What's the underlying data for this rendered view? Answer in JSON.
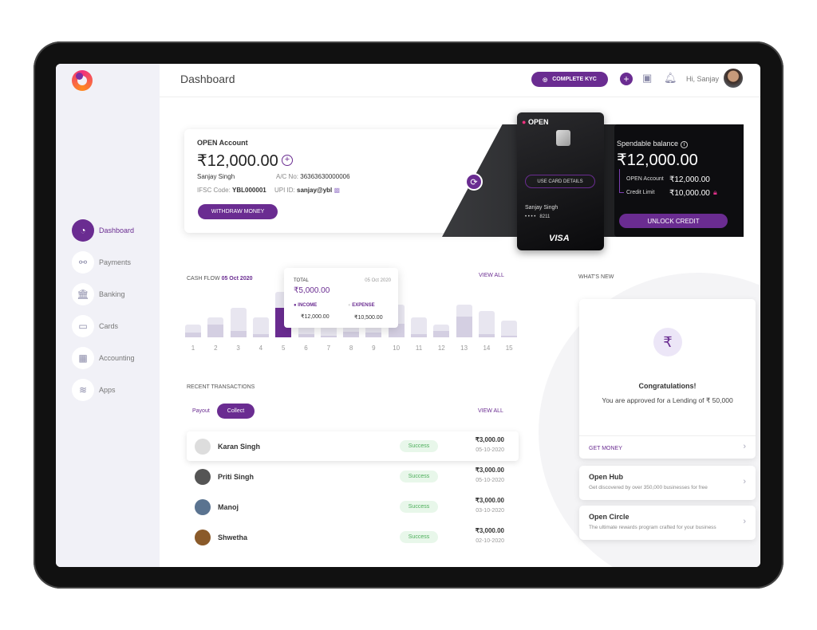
{
  "header": {
    "title": "Dashboard",
    "kyc_label": "COMPLETE KYC",
    "greeting": "Hi, Sanjay"
  },
  "sidebar": {
    "items": [
      {
        "label": "Dashboard",
        "icon": "speedometer-icon",
        "active": true
      },
      {
        "label": "Payments",
        "icon": "payments-icon"
      },
      {
        "label": "Banking",
        "icon": "bank-icon"
      },
      {
        "label": "Cards",
        "icon": "card-icon"
      },
      {
        "label": "Accounting",
        "icon": "calculator-icon"
      },
      {
        "label": "Apps",
        "icon": "layers-icon"
      }
    ]
  },
  "account": {
    "title": "OPEN Account",
    "balance": "₹12,000.00",
    "name": "Sanjay Singh",
    "ac_label": "A/C No:",
    "ac_no": "36363630000006",
    "ifsc_label": "IFSC Code:",
    "ifsc": "YBL000001",
    "upi_label": "UPI ID:",
    "upi": "sanjay@ybl",
    "withdraw": "WITHDRAW MONEY"
  },
  "vcard": {
    "brand": "OPEN",
    "use_details": "USE CARD DETAILS",
    "holder": "Sanjay Singh",
    "dots": "• • • •",
    "last4": "8211",
    "network": "VISA"
  },
  "spendable": {
    "title": "Spendable balance",
    "amount": "₹12,000.00",
    "open_label": "OPEN Account",
    "open_amount": "₹12,000.00",
    "credit_label": "Credit Limit",
    "credit_amount": "₹10,000.00",
    "unlock": "UNLOCK CREDIT"
  },
  "cashflow": {
    "title": "CASH FLOW",
    "date": "05 Oct 2020",
    "view_all": "VIEW ALL",
    "tooltip": {
      "total_label": "TOTAL",
      "date": "05 Oct 2020",
      "total": "₹5,000.00",
      "income_label": "INCOME",
      "income": "₹12,000.00",
      "expense_label": "EXPENSE",
      "expense": "₹10,500.00"
    }
  },
  "chart_data": {
    "type": "bar",
    "categories": [
      "1",
      "2",
      "3",
      "4",
      "5",
      "6",
      "7",
      "8",
      "9",
      "10",
      "11",
      "12",
      "13",
      "14",
      "15"
    ],
    "series": [
      {
        "values": [
          16,
          25,
          37,
          25,
          57,
          20,
          20,
          25,
          20,
          41,
          25,
          16,
          41,
          33,
          21
        ]
      },
      {
        "values": [
          6,
          16,
          8,
          4,
          37,
          4,
          2,
          7,
          6,
          17,
          4,
          8,
          26,
          4,
          2
        ]
      }
    ],
    "highlight": "5",
    "colors": {
      "outer": "#e8e6f0",
      "inner": "#d4cfe2",
      "active": "#6a2c91"
    }
  },
  "transactions": {
    "title": "RECENT TRANSACTIONS",
    "tabs": [
      "Payout",
      "Collect"
    ],
    "view_all": "VIEW ALL",
    "rows": [
      {
        "name": "Karan Singh",
        "status": "Success",
        "amount": "₹3,000.00",
        "date": "05-10-2020"
      },
      {
        "name": "Priti Singh",
        "status": "Success",
        "amount": "₹3,000.00",
        "date": "05-10-2020"
      },
      {
        "name": "Manoj",
        "status": "Success",
        "amount": "₹3,000.00",
        "date": "03-10-2020"
      },
      {
        "name": "Shwetha",
        "status": "Success",
        "amount": "₹3,000.00",
        "date": "02-10-2020"
      }
    ]
  },
  "whats_new": {
    "title": "WHAT'S NEW",
    "congrats": "Congratulations!",
    "approved": "You are approved for a Lending of ₹ 50,000",
    "get_money": "GET MONEY",
    "items": [
      {
        "title": "Open Hub",
        "desc": "Get discovered by over 350,000 businesses for free"
      },
      {
        "title": "Open Circle",
        "desc": "The ultimate rewards program crafted for your business"
      }
    ]
  },
  "colors": {
    "accent": "#6a2c91",
    "success": "#4cae5a"
  }
}
